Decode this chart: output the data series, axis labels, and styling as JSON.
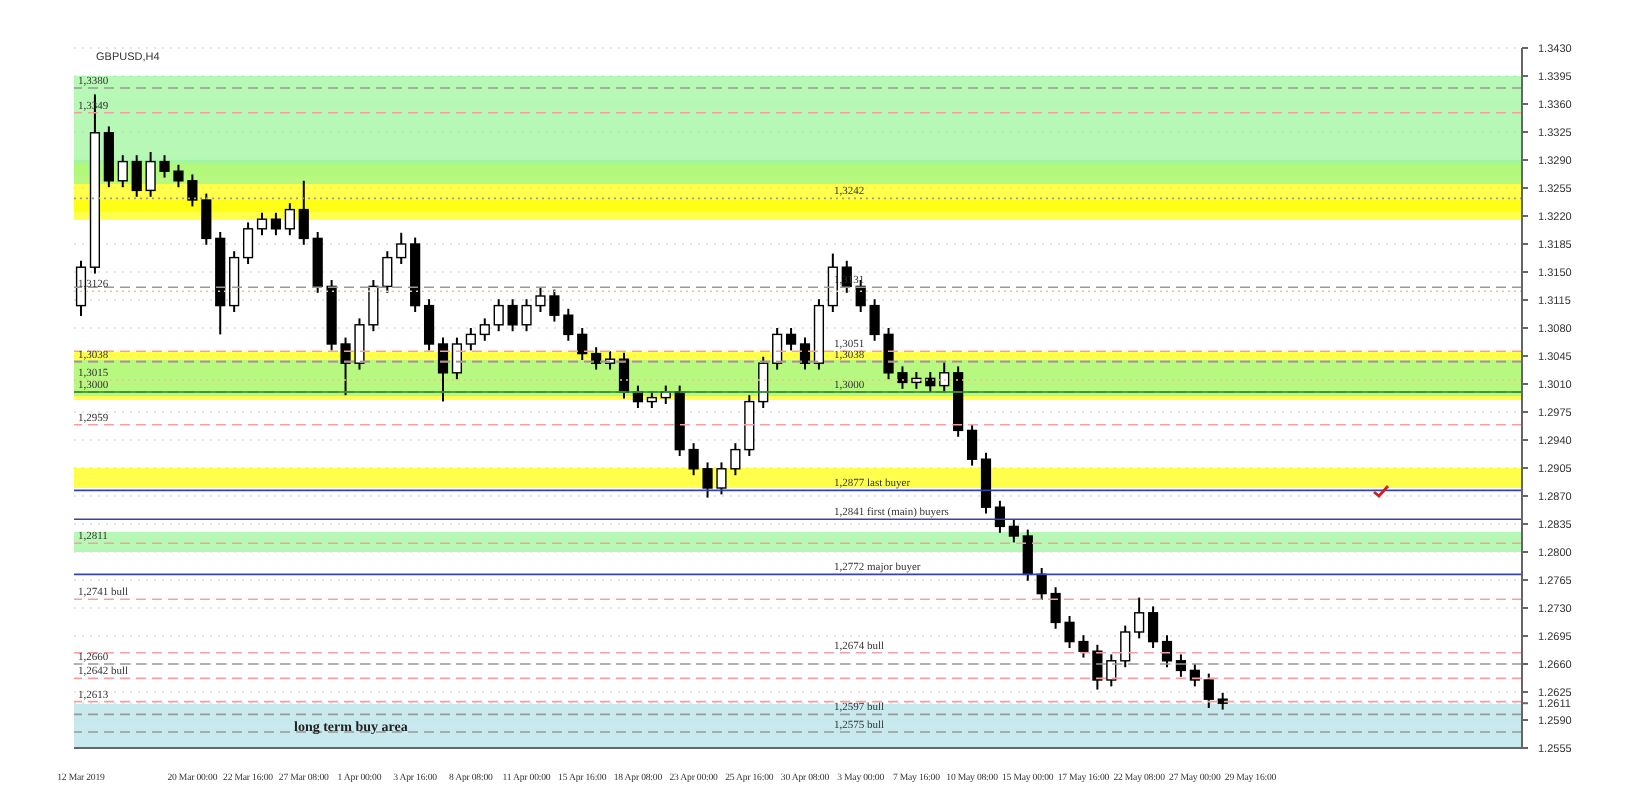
{
  "chart_data": {
    "type": "candlestick",
    "title": "GBPUSD,H4",
    "categories": [
      "12 Mar 2019",
      null,
      null,
      null,
      null,
      null,
      null,
      null,
      "20 Mar 00:00",
      null,
      null,
      null,
      "22 Mar 16:00",
      null,
      null,
      null,
      "27 Mar 08:00",
      null,
      null,
      null,
      "1 Apr 00:00",
      null,
      null,
      null,
      "3 Apr 16:00",
      null,
      null,
      null,
      "8 Apr 08:00",
      null,
      null,
      null,
      "11 Apr 00:00",
      null,
      null,
      null,
      "15 Apr 16:00",
      null,
      null,
      null,
      "18 Apr 08:00",
      null,
      null,
      null,
      "23 Apr 00:00",
      null,
      null,
      null,
      "25 Apr 16:00",
      null,
      null,
      null,
      "30 Apr 08:00",
      null,
      null,
      null,
      "3 May 00:00",
      null,
      null,
      null,
      "7 May 16:00",
      null,
      null,
      null,
      "10 May 08:00",
      null,
      null,
      null,
      "15 May 00:00",
      null,
      null,
      null,
      "17 May 16:00",
      null,
      null,
      null,
      "22 May 08:00",
      null,
      null,
      null,
      "27 May 00:00",
      null,
      null,
      null,
      "29 May 16:00",
      null,
      null,
      null,
      null,
      null,
      null,
      null,
      null,
      null,
      null,
      null,
      null,
      null,
      null,
      null,
      null,
      null,
      null,
      null
    ],
    "series": [
      {
        "color": "#000000",
        "ohlc": [
          [
            1.3108,
            1.3164,
            1.3095,
            1.3156
          ],
          [
            1.3156,
            1.3372,
            1.3148,
            1.3324
          ],
          [
            1.3324,
            1.3332,
            1.3256,
            1.3264
          ],
          [
            1.3264,
            1.3296,
            1.3256,
            1.3288
          ],
          [
            1.3288,
            1.3296,
            1.3244,
            1.3252
          ],
          [
            1.3252,
            1.33,
            1.3244,
            1.3288
          ],
          [
            1.3288,
            1.3296,
            1.3268,
            1.3276
          ],
          [
            1.3276,
            1.3284,
            1.3256,
            1.3264
          ],
          [
            1.3264,
            1.3272,
            1.3232,
            1.324
          ],
          [
            1.324,
            1.3248,
            1.3184,
            1.3192
          ],
          [
            1.3192,
            1.32,
            1.3072,
            1.3108
          ],
          [
            1.3108,
            1.3176,
            1.31,
            1.3168
          ],
          [
            1.3168,
            1.3212,
            1.316,
            1.3204
          ],
          [
            1.3204,
            1.3224,
            1.3196,
            1.3216
          ],
          [
            1.3216,
            1.3224,
            1.3196,
            1.3204
          ],
          [
            1.3204,
            1.3236,
            1.3196,
            1.3228
          ],
          [
            1.3228,
            1.3264,
            1.3184,
            1.3192
          ],
          [
            1.3192,
            1.32,
            1.3124,
            1.3132
          ],
          [
            1.3132,
            1.314,
            1.3052,
            1.306
          ],
          [
            1.306,
            1.3068,
            1.2996,
            1.3036
          ],
          [
            1.3036,
            1.3092,
            1.3028,
            1.3084
          ],
          [
            1.3084,
            1.314,
            1.3076,
            1.3132
          ],
          [
            1.3132,
            1.3176,
            1.3124,
            1.3168
          ],
          [
            1.3168,
            1.3199,
            1.316,
            1.3185
          ],
          [
            1.3185,
            1.3193,
            1.31,
            1.3108
          ],
          [
            1.3108,
            1.3116,
            1.3052,
            1.306
          ],
          [
            1.306,
            1.3068,
            1.2988,
            1.3024
          ],
          [
            1.3024,
            1.3068,
            1.3016,
            1.306
          ],
          [
            1.306,
            1.308,
            1.3052,
            1.3072
          ],
          [
            1.3072,
            1.3092,
            1.3064,
            1.3084
          ],
          [
            1.3084,
            1.3116,
            1.3076,
            1.3108
          ],
          [
            1.3108,
            1.3116,
            1.3076,
            1.3084
          ],
          [
            1.3084,
            1.3116,
            1.3076,
            1.3108
          ],
          [
            1.3108,
            1.3131,
            1.31,
            1.312
          ],
          [
            1.312,
            1.3128,
            1.3088,
            1.3096
          ],
          [
            1.3096,
            1.3104,
            1.3064,
            1.3072
          ],
          [
            1.3072,
            1.308,
            1.304,
            1.3048
          ],
          [
            1.3048,
            1.3056,
            1.3028,
            1.3036
          ],
          [
            1.3036,
            1.3051,
            1.3028,
            1.3041
          ],
          [
            1.3041,
            1.3049,
            1.2992,
            1.3
          ],
          [
            1.3,
            1.3008,
            1.298,
            1.2988
          ],
          [
            1.2988,
            1.3001,
            1.298,
            1.2993
          ],
          [
            1.2993,
            1.3008,
            1.2985,
            1.3
          ],
          [
            1.3,
            1.3008,
            1.292,
            1.2928
          ],
          [
            1.2928,
            1.2936,
            1.2896,
            1.2904
          ],
          [
            1.2904,
            1.2912,
            1.2868,
            1.288
          ],
          [
            1.288,
            1.2912,
            1.2872,
            1.2904
          ],
          [
            1.2904,
            1.2936,
            1.2896,
            1.2928
          ],
          [
            1.2928,
            1.2996,
            1.292,
            1.2988
          ],
          [
            1.2988,
            1.3044,
            1.298,
            1.3036
          ],
          [
            1.3036,
            1.308,
            1.3028,
            1.3072
          ],
          [
            1.3072,
            1.308,
            1.3052,
            1.306
          ],
          [
            1.306,
            1.3068,
            1.3028,
            1.3036
          ],
          [
            1.3036,
            1.3116,
            1.3028,
            1.3108
          ],
          [
            1.3108,
            1.3173,
            1.31,
            1.3156
          ],
          [
            1.3156,
            1.3164,
            1.3124,
            1.3132
          ],
          [
            1.3132,
            1.314,
            1.31,
            1.3108
          ],
          [
            1.3108,
            1.3116,
            1.3064,
            1.3072
          ],
          [
            1.3072,
            1.308,
            1.3016,
            1.3024
          ],
          [
            1.3024,
            1.3032,
            1.3004,
            1.3012
          ],
          [
            1.3012,
            1.3025,
            1.3004,
            1.3017
          ],
          [
            1.3017,
            1.3025,
            1.3,
            1.3008
          ],
          [
            1.3008,
            1.3038,
            1.3,
            1.3024
          ],
          [
            1.3024,
            1.3032,
            1.2944,
            1.2952
          ],
          [
            1.2952,
            1.296,
            1.2908,
            1.2916
          ],
          [
            1.2916,
            1.2924,
            1.2848,
            1.2856
          ],
          [
            1.2856,
            1.2864,
            1.2824,
            1.2832
          ],
          [
            1.2832,
            1.284,
            1.2812,
            1.282
          ],
          [
            1.282,
            1.2828,
            1.2764,
            1.2772
          ],
          [
            1.2772,
            1.278,
            1.274,
            1.2748
          ],
          [
            1.2748,
            1.2756,
            1.2704,
            1.2712
          ],
          [
            1.2712,
            1.272,
            1.268,
            1.2688
          ],
          [
            1.2688,
            1.2696,
            1.2668,
            1.2676
          ],
          [
            1.2676,
            1.2684,
            1.2628,
            1.264
          ],
          [
            1.264,
            1.2672,
            1.2632,
            1.2664
          ],
          [
            1.2664,
            1.2708,
            1.2656,
            1.27
          ],
          [
            1.27,
            1.2743,
            1.2692,
            1.2724
          ],
          [
            1.2724,
            1.2732,
            1.268,
            1.2688
          ],
          [
            1.2688,
            1.2696,
            1.2656,
            1.2664
          ],
          [
            1.2664,
            1.2672,
            1.2644,
            1.2652
          ],
          [
            1.2652,
            1.266,
            1.2632,
            1.264
          ],
          [
            1.264,
            1.2648,
            1.2605,
            1.2616
          ],
          [
            1.2616,
            1.2624,
            1.2603,
            1.2611
          ],
          null,
          null,
          null,
          null,
          null,
          null,
          null,
          null,
          null,
          null,
          null,
          null,
          null,
          null,
          null,
          null,
          null,
          null,
          null,
          null,
          null
        ]
      }
    ],
    "ylim": [
      1.2555,
      1.343
    ],
    "yticks": [
      {
        "value": 1.343,
        "label": "1.3430"
      },
      1.3395,
      {
        "value": 1.336,
        "label": "1.3360"
      },
      1.3325,
      {
        "value": 1.329,
        "label": "1.3290"
      },
      1.3255,
      {
        "value": 1.322,
        "label": "1.3220"
      },
      1.3185,
      {
        "value": 1.315,
        "label": "1.3150"
      },
      1.3115,
      {
        "value": 1.308,
        "label": "1.3080"
      },
      1.3045,
      {
        "value": 1.301,
        "label": "1.3010"
      },
      1.2975,
      {
        "value": 1.294,
        "label": "1.2940"
      },
      1.2905,
      {
        "value": 1.287,
        "label": "1.2870"
      },
      1.2835,
      {
        "value": 1.28,
        "label": "1.2800"
      },
      1.2765,
      {
        "value": 1.273,
        "label": "1.2730"
      },
      1.2695,
      {
        "value": 1.266,
        "label": "1.2660"
      },
      1.2625,
      1.2611,
      {
        "value": 1.259,
        "label": "1.2590"
      },
      1.2555
    ],
    "grid": "y",
    "bands": [
      {
        "axis": "y",
        "from": 1.327,
        "to": 1.3395,
        "color": "#99f599"
      },
      {
        "axis": "y",
        "from": 1.3225,
        "to": 1.3285,
        "color": "#ffff00"
      },
      {
        "axis": "y",
        "from": 1.326,
        "to": 1.329,
        "color": "#99f599"
      },
      {
        "axis": "y",
        "from": 1.3215,
        "to": 1.324,
        "color": "#ffff00"
      },
      {
        "axis": "y",
        "from": 1.299,
        "to": 1.305,
        "color": "#ffff00"
      },
      {
        "axis": "y",
        "from": 1.2995,
        "to": 1.304,
        "color": "#99f599"
      },
      {
        "axis": "y",
        "from": 1.288,
        "to": 1.2905,
        "color": "#ffff00"
      },
      {
        "axis": "y",
        "from": 1.28,
        "to": 1.2825,
        "color": "#99f599"
      },
      {
        "axis": "y",
        "from": 1.2555,
        "to": 1.261,
        "color": "#b0e0e6",
        "label": "long term buy area"
      }
    ],
    "ref_lines": [
      {
        "axis": "y",
        "value": 1.338,
        "label": "1,3380",
        "color": "#999999",
        "line_style": "dashed"
      },
      {
        "axis": "y",
        "value": 1.3242,
        "label": "1,3242",
        "color": "#999999",
        "line_style": "dotted"
      },
      {
        "axis": "y",
        "value": 1.3349,
        "label": "1,3349",
        "color": "#f4a0a0",
        "line_style": "dashed"
      },
      {
        "axis": "y",
        "value": 1.3131,
        "label": "1,3131",
        "color": "#999999",
        "line_style": "dashed"
      },
      {
        "axis": "y",
        "value": 1.3126,
        "label": "1,3126",
        "color": "#f4c090",
        "line_style": "dotted"
      },
      {
        "axis": "y",
        "value": 1.3051,
        "label": "1,3051",
        "color": "#f4a0a0",
        "line_style": "dashed"
      },
      {
        "axis": "y",
        "value": 1.3038,
        "label": "1,3038",
        "color": "#f4a0a0",
        "line_style": "dashed"
      },
      {
        "axis": "y",
        "value": 1.3038,
        "label": "1,3038",
        "color": "#999999",
        "line_style": "dashed"
      },
      {
        "axis": "y",
        "value": 1.3,
        "label": "1,3000",
        "color": "#999999",
        "line_style": "dashed"
      },
      {
        "axis": "y",
        "value": 1.3,
        "label": "1,3000",
        "color": "#228822",
        "line_style": "solid"
      },
      {
        "axis": "y",
        "value": 1.3015,
        "label": "1,3015",
        "color": "#f4c090",
        "line_style": "dotted"
      },
      {
        "axis": "y",
        "value": 1.2877,
        "label": "1,2877 last buyer",
        "color": "#3344aa",
        "line_style": "solid"
      },
      {
        "axis": "y",
        "value": 1.2959,
        "label": "1,2959",
        "color": "#f4a0a0",
        "line_style": "dashed"
      },
      {
        "axis": "y",
        "value": 1.2841,
        "label": "1,2841 first (main) buyers",
        "color": "#3344aa",
        "line_style": "solid"
      },
      {
        "axis": "y",
        "value": 1.2811,
        "label": "1,2811",
        "color": "#f4a0a0",
        "line_style": "dashed"
      },
      {
        "axis": "y",
        "value": 1.2772,
        "label": "1,2772 major buyer",
        "color": "#3344aa",
        "line_style": "solid"
      },
      {
        "axis": "y",
        "value": 1.2741,
        "label": "1,2741 bull",
        "color": "#f4a0a0",
        "line_style": "dashed"
      },
      {
        "axis": "y",
        "value": 1.2674,
        "label": "1,2674 bull",
        "color": "#f4a0a0",
        "line_style": "dashed"
      },
      {
        "axis": "y",
        "value": 1.266,
        "label": "1,2660",
        "color": "#999999",
        "line_style": "dashed"
      },
      {
        "axis": "y",
        "value": 1.2597,
        "label": "1,2597 bull",
        "color": "#999999",
        "line_style": "dashed"
      },
      {
        "axis": "y",
        "value": 1.2642,
        "label": "1,2642 bull",
        "color": "#f4a0a0",
        "line_style": "dashed"
      },
      {
        "axis": "y",
        "value": 1.2575,
        "label": "1,2575 bull",
        "color": "#999999",
        "line_style": "dashed"
      },
      {
        "axis": "y",
        "value": 1.2613,
        "label": "1,2613",
        "color": "#f4a0a0",
        "line_style": "dashed"
      }
    ]
  }
}
